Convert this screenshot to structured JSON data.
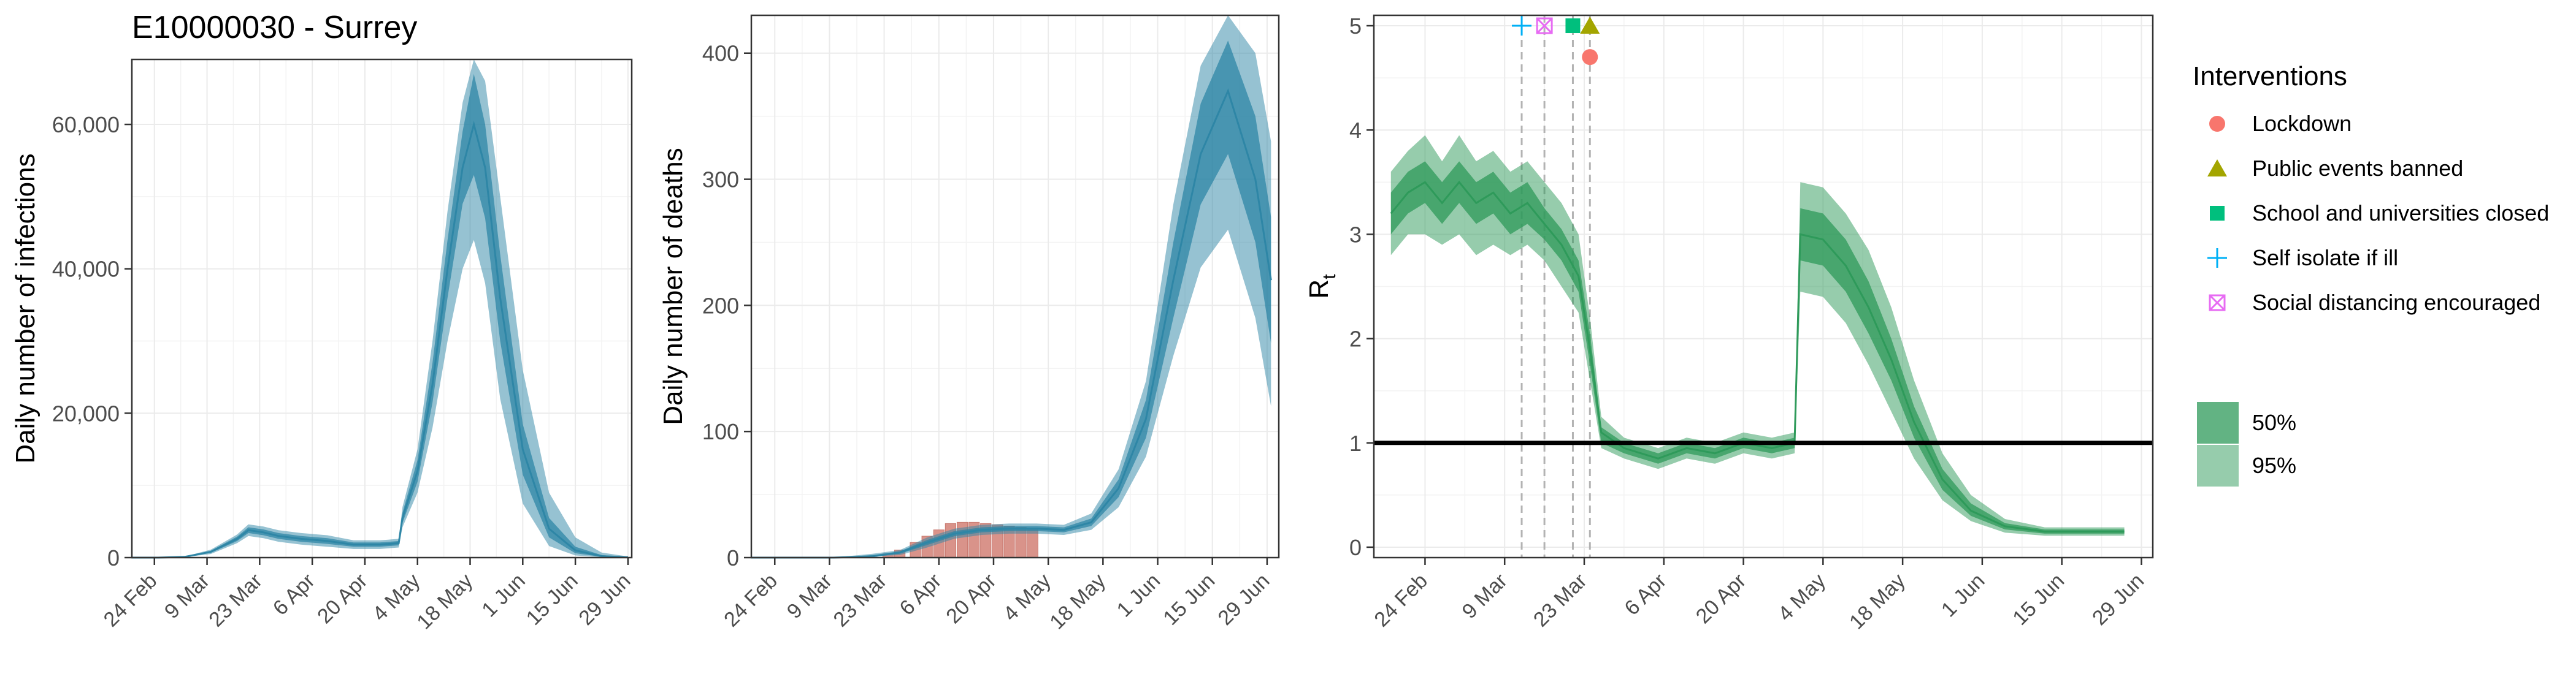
{
  "colors": {
    "infection_band": "#2e86a6",
    "death_band": "#2e86a6",
    "rt_band": "#2e9a5a",
    "deaths_bar": "#d9938a",
    "panel_border": "#333333",
    "grid": "#ebebeb",
    "lockdown": "#f8766d",
    "public_events": "#a3a500",
    "schools": "#00bf7d",
    "self_isolate": "#00b0f6",
    "social_distancing": "#e76bf3"
  },
  "legend": {
    "interventions_title": "Interventions",
    "items": [
      {
        "label": "Lockdown",
        "icon": "circle",
        "color_key": "lockdown"
      },
      {
        "label": "Public events banned",
        "icon": "triangle",
        "color_key": "public_events"
      },
      {
        "label": "School and universities closed",
        "icon": "square",
        "color_key": "schools"
      },
      {
        "label": "Self isolate if ill",
        "icon": "plus",
        "color_key": "self_isolate"
      },
      {
        "label": "Social distancing encouraged",
        "icon": "boxed-x",
        "color_key": "social_distancing"
      }
    ],
    "ci": [
      {
        "label": "50%"
      },
      {
        "label": "95%"
      }
    ]
  },
  "chart_data": [
    {
      "type": "area",
      "title": "E10000030 - Surrey",
      "ylabel": "Daily number of infections",
      "xlabel": "",
      "x_ticks": [
        "24 Feb",
        "9 Mar",
        "23 Mar",
        "6 Apr",
        "20 Apr",
        "4 May",
        "18 May",
        "1 Jun",
        "15 Jun",
        "29 Jun"
      ],
      "y_ticks": [
        "0",
        "20,000",
        "40,000",
        "60,000"
      ],
      "ylim": [
        0,
        69000
      ],
      "x_range": [
        "2020-02-18",
        "2020-06-30"
      ],
      "series": [
        {
          "x": [
            "2020-02-18",
            "2020-02-25",
            "2020-03-03",
            "2020-03-10",
            "2020-03-17",
            "2020-03-20",
            "2020-03-24",
            "2020-03-28",
            "2020-04-03",
            "2020-04-10",
            "2020-04-17",
            "2020-04-24",
            "2020-04-29",
            "2020-04-30",
            "2020-05-04",
            "2020-05-08",
            "2020-05-12",
            "2020-05-16",
            "2020-05-19",
            "2020-05-22",
            "2020-05-26",
            "2020-06-01",
            "2020-06-08",
            "2020-06-15",
            "2020-06-22",
            "2020-06-29"
          ],
          "median": [
            0,
            0,
            100,
            800,
            2600,
            3800,
            3500,
            3000,
            2600,
            2300,
            1800,
            1800,
            2000,
            5500,
            12000,
            24000,
            40000,
            54000,
            60000,
            54000,
            36000,
            15000,
            4000,
            1000,
            200,
            50
          ],
          "lower50": [
            0,
            0,
            80,
            650,
            2300,
            3400,
            3100,
            2600,
            2200,
            1900,
            1500,
            1500,
            1700,
            4800,
            10500,
            21500,
            36000,
            49000,
            53000,
            47000,
            30000,
            11500,
            2800,
            600,
            100,
            20
          ],
          "upper50": [
            0,
            0,
            120,
            950,
            2900,
            4200,
            3900,
            3400,
            3000,
            2700,
            2100,
            2100,
            2300,
            6200,
            13500,
            27000,
            44000,
            59000,
            67000,
            60000,
            42000,
            18500,
            5500,
            1500,
            350,
            80
          ],
          "lower95": [
            0,
            0,
            60,
            500,
            2000,
            3000,
            2700,
            2200,
            1800,
            1500,
            1200,
            1200,
            1400,
            4200,
            9000,
            18000,
            30000,
            40000,
            44000,
            38000,
            22000,
            7500,
            1600,
            300,
            50,
            10
          ],
          "upper95": [
            0,
            0,
            150,
            1100,
            3200,
            4600,
            4300,
            3800,
            3400,
            3100,
            2400,
            2400,
            2600,
            7000,
            15000,
            30000,
            48000,
            63000,
            69000,
            66000,
            50000,
            26000,
            9000,
            2800,
            700,
            150
          ]
        }
      ]
    },
    {
      "type": "area",
      "title": "",
      "ylabel": "Daily number of deaths",
      "xlabel": "",
      "x_ticks": [
        "24 Feb",
        "9 Mar",
        "23 Mar",
        "6 Apr",
        "20 Apr",
        "4 May",
        "18 May",
        "1 Jun",
        "15 Jun",
        "29 Jun"
      ],
      "y_ticks": [
        "0",
        "100",
        "200",
        "300",
        "400"
      ],
      "ylim": [
        0,
        430
      ],
      "x_range": [
        "2020-02-18",
        "2020-07-02"
      ],
      "series": [
        {
          "x": [
            "2020-02-18",
            "2020-03-10",
            "2020-03-20",
            "2020-03-27",
            "2020-04-03",
            "2020-04-10",
            "2020-04-17",
            "2020-04-24",
            "2020-05-01",
            "2020-05-08",
            "2020-05-15",
            "2020-05-22",
            "2020-05-29",
            "2020-06-05",
            "2020-06-12",
            "2020-06-19",
            "2020-06-26",
            "2020-06-30"
          ],
          "median": [
            0,
            0,
            1,
            4,
            12,
            19,
            22,
            23,
            23,
            22,
            28,
            55,
            110,
            220,
            320,
            370,
            300,
            220
          ],
          "lower50": [
            0,
            0,
            1,
            3,
            10,
            17,
            20,
            21,
            21,
            20,
            25,
            48,
            95,
            190,
            280,
            320,
            250,
            170
          ],
          "upper50": [
            0,
            0,
            2,
            5,
            14,
            21,
            24,
            25,
            25,
            24,
            31,
            62,
            125,
            250,
            360,
            410,
            350,
            270
          ],
          "lower95": [
            0,
            0,
            1,
            2,
            8,
            15,
            18,
            19,
            19,
            18,
            22,
            40,
            80,
            160,
            230,
            260,
            190,
            120
          ],
          "upper95": [
            0,
            0,
            3,
            6,
            16,
            23,
            26,
            27,
            27,
            26,
            35,
            70,
            140,
            280,
            390,
            430,
            400,
            330
          ]
        }
      ],
      "bars": {
        "x": [
          "2020-03-24",
          "2020-03-27",
          "2020-03-31",
          "2020-04-03",
          "2020-04-06",
          "2020-04-09",
          "2020-04-12",
          "2020-04-15",
          "2020-04-18",
          "2020-04-21",
          "2020-04-24",
          "2020-04-27",
          "2020-04-30"
        ],
        "values": [
          3,
          6,
          12,
          17,
          22,
          27,
          28,
          28,
          27,
          26,
          25,
          24,
          23
        ]
      }
    },
    {
      "type": "area",
      "title": "",
      "ylabel": "R",
      "ylabel_subscript": "t",
      "xlabel": "",
      "x_ticks": [
        "24 Feb",
        "9 Mar",
        "23 Mar",
        "6 Apr",
        "20 Apr",
        "4 May",
        "18 May",
        "1 Jun",
        "15 Jun",
        "29 Jun"
      ],
      "y_ticks": [
        "0",
        "1",
        "2",
        "3",
        "4",
        "5"
      ],
      "ylim": [
        -0.1,
        5.1
      ],
      "x_range": [
        "2020-02-15",
        "2020-07-01"
      ],
      "reference_line_y": 1,
      "series": [
        {
          "x": [
            "2020-02-18",
            "2020-02-21",
            "2020-02-24",
            "2020-02-27",
            "2020-03-01",
            "2020-03-04",
            "2020-03-07",
            "2020-03-10",
            "2020-03-13",
            "2020-03-16",
            "2020-03-19",
            "2020-03-22",
            "2020-03-24",
            "2020-03-26",
            "2020-03-30",
            "2020-04-05",
            "2020-04-10",
            "2020-04-15",
            "2020-04-20",
            "2020-04-25",
            "2020-04-29",
            "2020-04-30",
            "2020-05-04",
            "2020-05-08",
            "2020-05-12",
            "2020-05-16",
            "2020-05-20",
            "2020-05-25",
            "2020-05-30",
            "2020-06-05",
            "2020-06-12",
            "2020-06-19",
            "2020-06-26"
          ],
          "median": [
            3.2,
            3.4,
            3.5,
            3.3,
            3.5,
            3.3,
            3.4,
            3.2,
            3.3,
            3.1,
            2.9,
            2.6,
            1.9,
            1.1,
            0.95,
            0.85,
            0.95,
            0.9,
            1.0,
            0.95,
            1.0,
            3.0,
            2.95,
            2.7,
            2.3,
            1.8,
            1.2,
            0.65,
            0.35,
            0.2,
            0.15,
            0.15,
            0.15
          ],
          "lower50": [
            3.0,
            3.2,
            3.3,
            3.1,
            3.3,
            3.1,
            3.2,
            3.0,
            3.1,
            2.95,
            2.75,
            2.45,
            1.75,
            1.0,
            0.9,
            0.8,
            0.9,
            0.85,
            0.95,
            0.9,
            0.95,
            2.75,
            2.7,
            2.45,
            2.05,
            1.6,
            1.05,
            0.55,
            0.3,
            0.17,
            0.13,
            0.13,
            0.13
          ],
          "upper50": [
            3.4,
            3.6,
            3.7,
            3.5,
            3.7,
            3.5,
            3.6,
            3.4,
            3.5,
            3.25,
            3.05,
            2.75,
            2.05,
            1.15,
            1.0,
            0.9,
            1.0,
            0.95,
            1.05,
            1.0,
            1.05,
            3.25,
            3.2,
            2.95,
            2.55,
            2.0,
            1.35,
            0.75,
            0.42,
            0.23,
            0.17,
            0.17,
            0.17
          ],
          "lower95": [
            2.8,
            3.0,
            3.0,
            2.9,
            3.0,
            2.8,
            2.9,
            2.8,
            2.9,
            2.75,
            2.5,
            2.25,
            1.6,
            0.95,
            0.85,
            0.75,
            0.85,
            0.8,
            0.9,
            0.85,
            0.9,
            2.45,
            2.4,
            2.15,
            1.75,
            1.3,
            0.85,
            0.45,
            0.25,
            0.14,
            0.11,
            0.11,
            0.11
          ],
          "upper95": [
            3.6,
            3.8,
            3.95,
            3.7,
            3.95,
            3.7,
            3.8,
            3.6,
            3.7,
            3.5,
            3.3,
            3.0,
            2.2,
            1.25,
            1.05,
            0.95,
            1.05,
            1.0,
            1.1,
            1.05,
            1.1,
            3.5,
            3.45,
            3.2,
            2.85,
            2.3,
            1.6,
            0.9,
            0.5,
            0.27,
            0.19,
            0.19,
            0.19
          ]
        }
      ],
      "interventions": [
        {
          "label": "Self isolate if ill",
          "date": "2020-03-12",
          "icon": "plus",
          "color_key": "self_isolate",
          "y": 5.0
        },
        {
          "label": "Social distancing encouraged",
          "date": "2020-03-16",
          "icon": "boxed-x",
          "color_key": "social_distancing",
          "y": 5.0
        },
        {
          "label": "School and universities closed",
          "date": "2020-03-21",
          "icon": "square",
          "color_key": "schools",
          "y": 5.0
        },
        {
          "label": "Public events banned",
          "date": "2020-03-24",
          "icon": "triangle",
          "color_key": "public_events",
          "y": 5.0
        },
        {
          "label": "Lockdown",
          "date": "2020-03-24",
          "icon": "circle",
          "color_key": "lockdown",
          "y": 4.7
        }
      ]
    }
  ]
}
